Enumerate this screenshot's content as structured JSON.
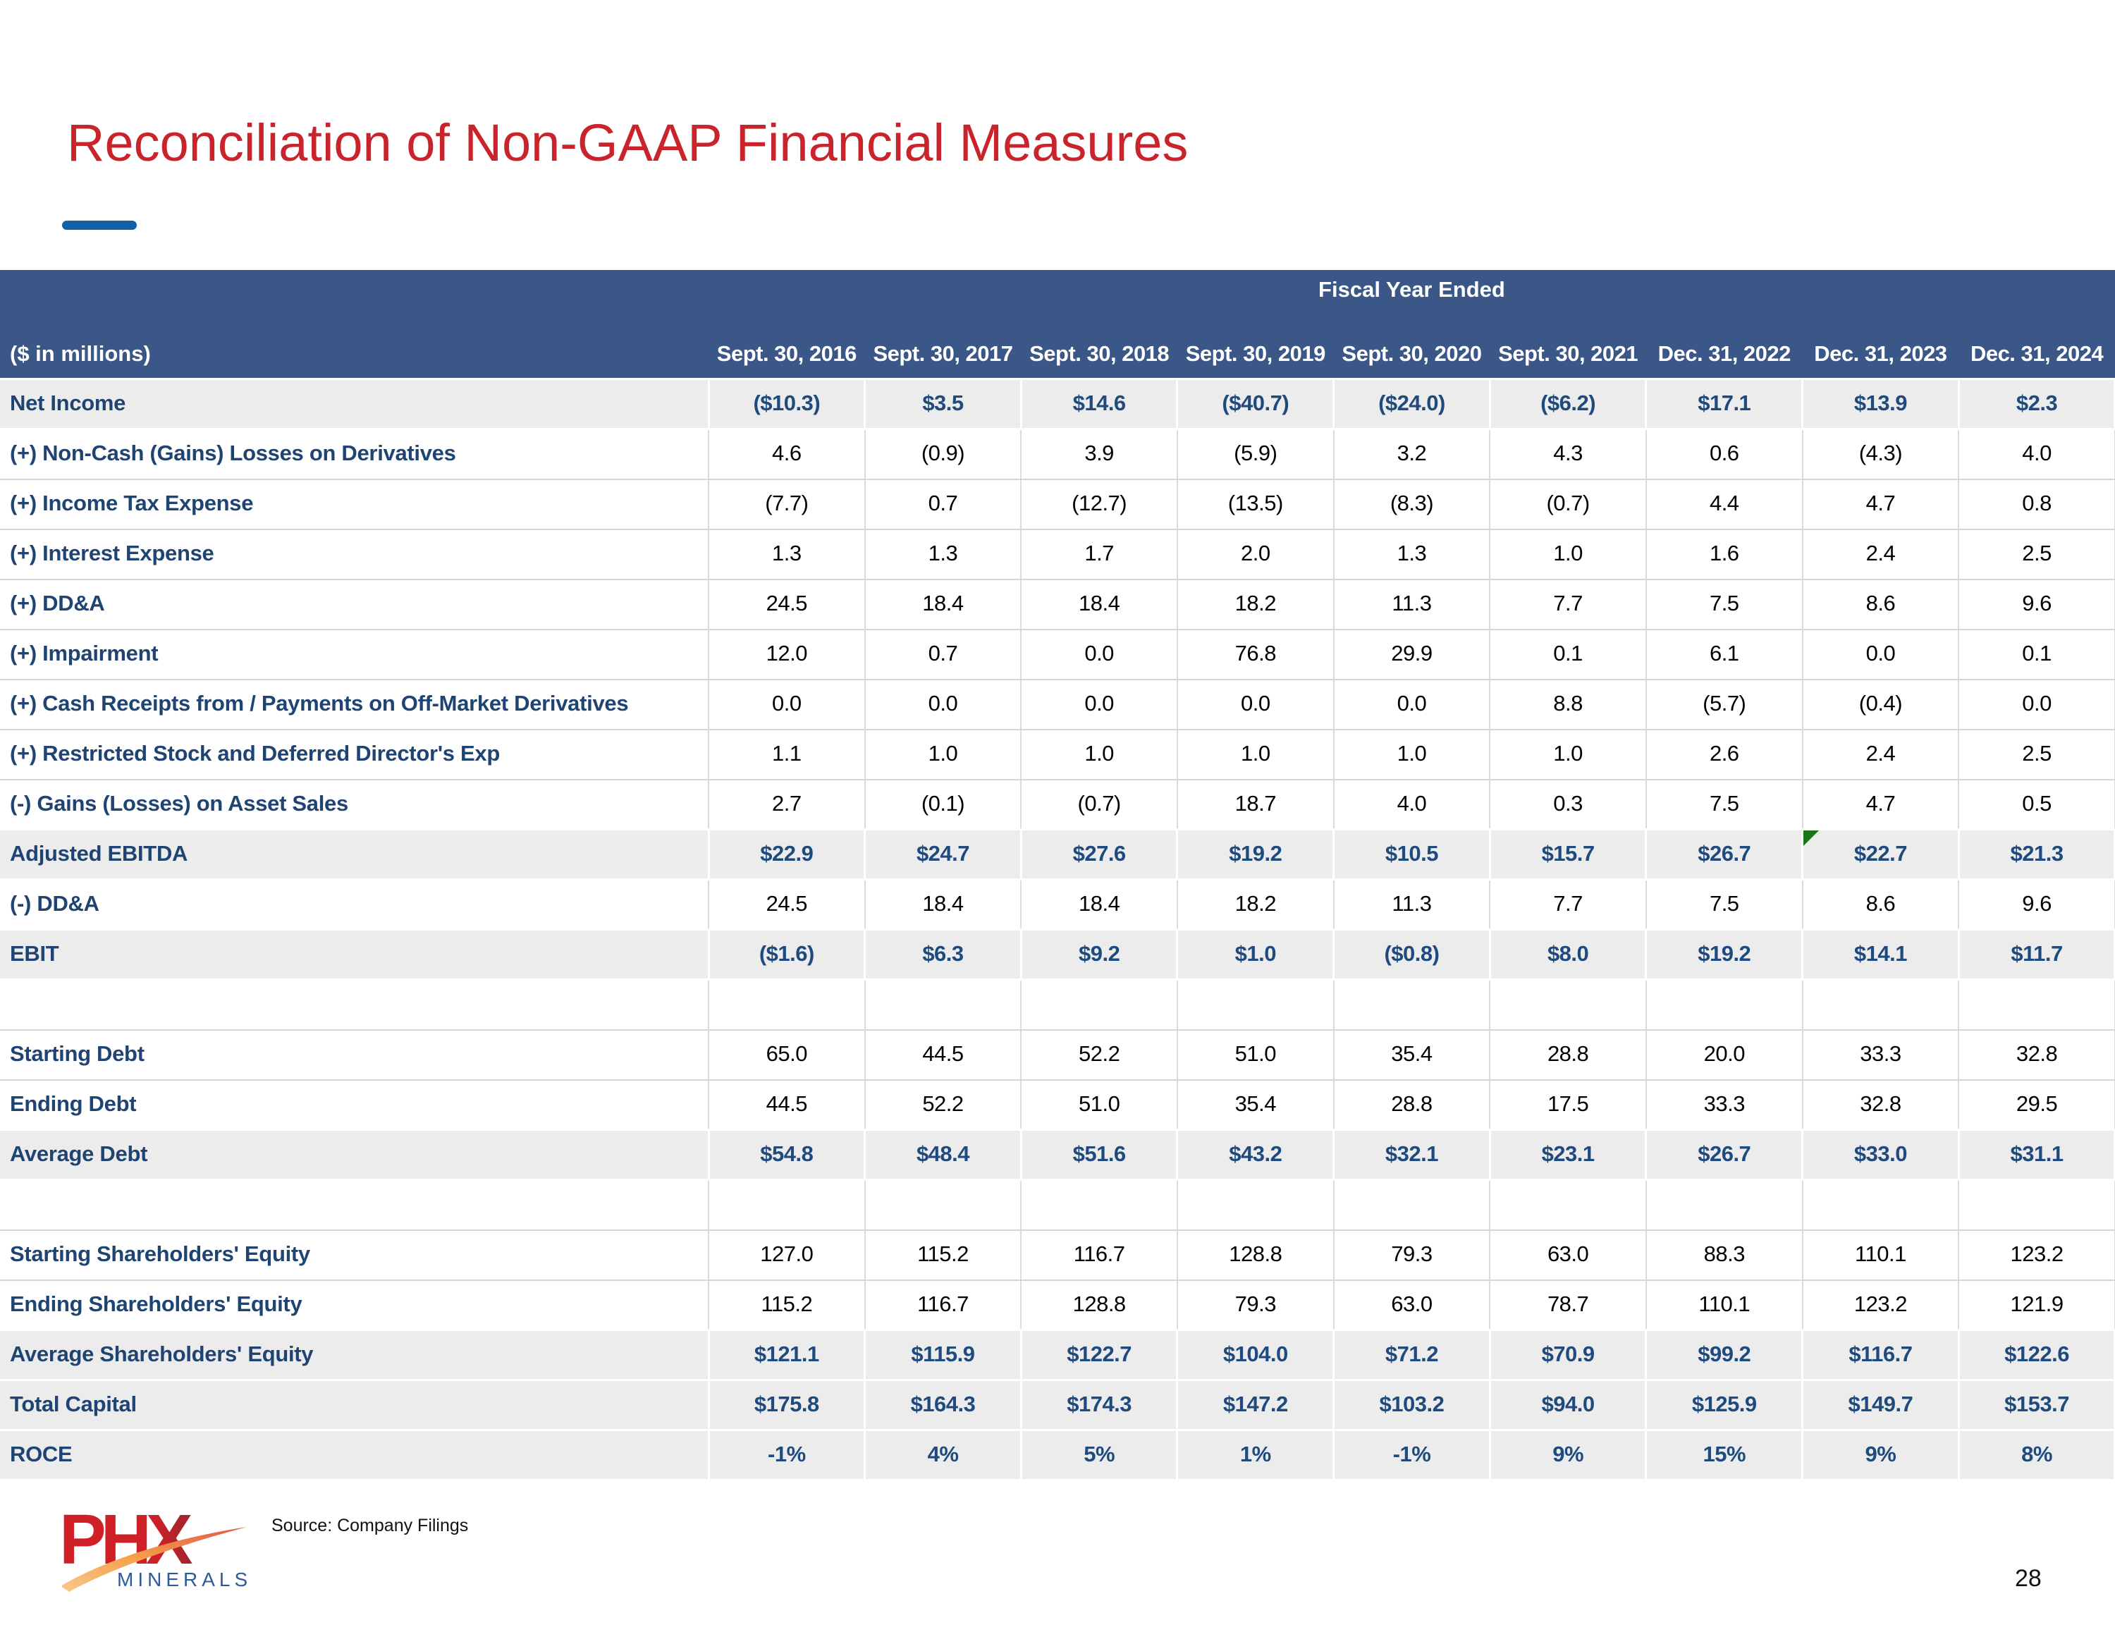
{
  "slide": {
    "title": "Reconciliation of Non-GAAP Financial Measures",
    "source_note": "Source: Company Filings",
    "page_number": "28"
  },
  "logo": {
    "name": "PHX Minerals logo",
    "text_main": "PHX",
    "text_sub": "MINERALS"
  },
  "colors": {
    "title_red": "#C9242C",
    "header_bg": "#3A5788",
    "row_label_navy": "#1F4473",
    "summary_value_navy": "#1F4A7E",
    "stripe_gray": "#ECECEC",
    "accent_dash_blue": "#1061A8",
    "flag_green": "#187818",
    "logo_red": "#CE2026",
    "logo_dark_red": "#9E2530",
    "logo_orange": "#F5A14C",
    "logo_blue": "#2B5B9B"
  },
  "table": {
    "group_header": "Fiscal Year Ended",
    "unit_label": "($ in millions)",
    "columns": [
      "Sept. 30, 2016",
      "Sept. 30, 2017",
      "Sept. 30, 2018",
      "Sept. 30, 2019",
      "Sept. 30, 2020",
      "Sept. 30, 2021",
      "Dec. 31, 2022",
      "Dec. 31, 2023",
      "Dec. 31, 2024"
    ],
    "rows": [
      {
        "label": "Net Income",
        "style": "summary",
        "values": [
          "($10.3)",
          "$3.5",
          "$14.6",
          "($40.7)",
          "($24.0)",
          "($6.2)",
          "$17.1",
          "$13.9",
          "$2.3"
        ]
      },
      {
        "label": "(+) Non-Cash (Gains) Losses on Derivatives",
        "style": "detail",
        "values": [
          "4.6",
          "(0.9)",
          "3.9",
          "(5.9)",
          "3.2",
          "4.3",
          "0.6",
          "(4.3)",
          "4.0"
        ]
      },
      {
        "label": "(+) Income Tax Expense",
        "style": "detail",
        "values": [
          "(7.7)",
          "0.7",
          "(12.7)",
          "(13.5)",
          "(8.3)",
          "(0.7)",
          "4.4",
          "4.7",
          "0.8"
        ]
      },
      {
        "label": "(+) Interest Expense",
        "style": "detail",
        "values": [
          "1.3",
          "1.3",
          "1.7",
          "2.0",
          "1.3",
          "1.0",
          "1.6",
          "2.4",
          "2.5"
        ]
      },
      {
        "label": "(+) DD&A",
        "style": "detail",
        "values": [
          "24.5",
          "18.4",
          "18.4",
          "18.2",
          "11.3",
          "7.7",
          "7.5",
          "8.6",
          "9.6"
        ]
      },
      {
        "label": "(+) Impairment",
        "style": "detail",
        "values": [
          "12.0",
          "0.7",
          "0.0",
          "76.8",
          "29.9",
          "0.1",
          "6.1",
          "0.0",
          "0.1"
        ]
      },
      {
        "label": "(+) Cash Receipts from / Payments on Off-Market Derivatives",
        "style": "detail",
        "values": [
          "0.0",
          "0.0",
          "0.0",
          "0.0",
          "0.0",
          "8.8",
          "(5.7)",
          "(0.4)",
          "0.0"
        ]
      },
      {
        "label": "(+) Restricted Stock and Deferred Director's Exp",
        "style": "detail",
        "values": [
          "1.1",
          "1.0",
          "1.0",
          "1.0",
          "1.0",
          "1.0",
          "2.6",
          "2.4",
          "2.5"
        ]
      },
      {
        "label": "(-) Gains (Losses) on Asset Sales",
        "style": "detail",
        "values": [
          "2.7",
          "(0.1)",
          "(0.7)",
          "18.7",
          "4.0",
          "0.3",
          "7.5",
          "4.7",
          "0.5"
        ]
      },
      {
        "label": "Adjusted EBITDA",
        "style": "summary",
        "flag_col": 7,
        "values": [
          "$22.9",
          "$24.7",
          "$27.6",
          "$19.2",
          "$10.5",
          "$15.7",
          "$26.7",
          "$22.7",
          "$21.3"
        ]
      },
      {
        "label": "(-) DD&A",
        "style": "detail",
        "values": [
          "24.5",
          "18.4",
          "18.4",
          "18.2",
          "11.3",
          "7.7",
          "7.5",
          "8.6",
          "9.6"
        ]
      },
      {
        "label": "EBIT",
        "style": "summary",
        "values": [
          "($1.6)",
          "$6.3",
          "$9.2",
          "$1.0",
          "($0.8)",
          "$8.0",
          "$19.2",
          "$14.1",
          "$11.7"
        ]
      },
      {
        "label": "",
        "style": "spacer",
        "values": [
          "",
          "",
          "",
          "",
          "",
          "",
          "",
          "",
          ""
        ]
      },
      {
        "label": "Starting Debt",
        "style": "detail",
        "values": [
          "65.0",
          "44.5",
          "52.2",
          "51.0",
          "35.4",
          "28.8",
          "20.0",
          "33.3",
          "32.8"
        ]
      },
      {
        "label": "Ending Debt",
        "style": "detail",
        "values": [
          "44.5",
          "52.2",
          "51.0",
          "35.4",
          "28.8",
          "17.5",
          "33.3",
          "32.8",
          "29.5"
        ]
      },
      {
        "label": "Average Debt",
        "style": "summary",
        "values": [
          "$54.8",
          "$48.4",
          "$51.6",
          "$43.2",
          "$32.1",
          "$23.1",
          "$26.7",
          "$33.0",
          "$31.1"
        ]
      },
      {
        "label": "",
        "style": "spacer",
        "values": [
          "",
          "",
          "",
          "",
          "",
          "",
          "",
          "",
          ""
        ]
      },
      {
        "label": "Starting Shareholders' Equity",
        "style": "detail",
        "values": [
          "127.0",
          "115.2",
          "116.7",
          "128.8",
          "79.3",
          "63.0",
          "88.3",
          "110.1",
          "123.2"
        ]
      },
      {
        "label": "Ending Shareholders' Equity",
        "style": "detail",
        "values": [
          "115.2",
          "116.7",
          "128.8",
          "79.3",
          "63.0",
          "78.7",
          "110.1",
          "123.2",
          "121.9"
        ]
      },
      {
        "label": "Average Shareholders' Equity",
        "style": "summary",
        "values": [
          "$121.1",
          "$115.9",
          "$122.7",
          "$104.0",
          "$71.2",
          "$70.9",
          "$99.2",
          "$116.7",
          "$122.6"
        ]
      },
      {
        "label": "Total Capital",
        "style": "summary",
        "values": [
          "$175.8",
          "$164.3",
          "$174.3",
          "$147.2",
          "$103.2",
          "$94.0",
          "$125.9",
          "$149.7",
          "$153.7"
        ]
      },
      {
        "label": "ROCE",
        "style": "summary",
        "values": [
          "-1%",
          "4%",
          "5%",
          "1%",
          "-1%",
          "9%",
          "15%",
          "9%",
          "8%"
        ]
      }
    ]
  }
}
